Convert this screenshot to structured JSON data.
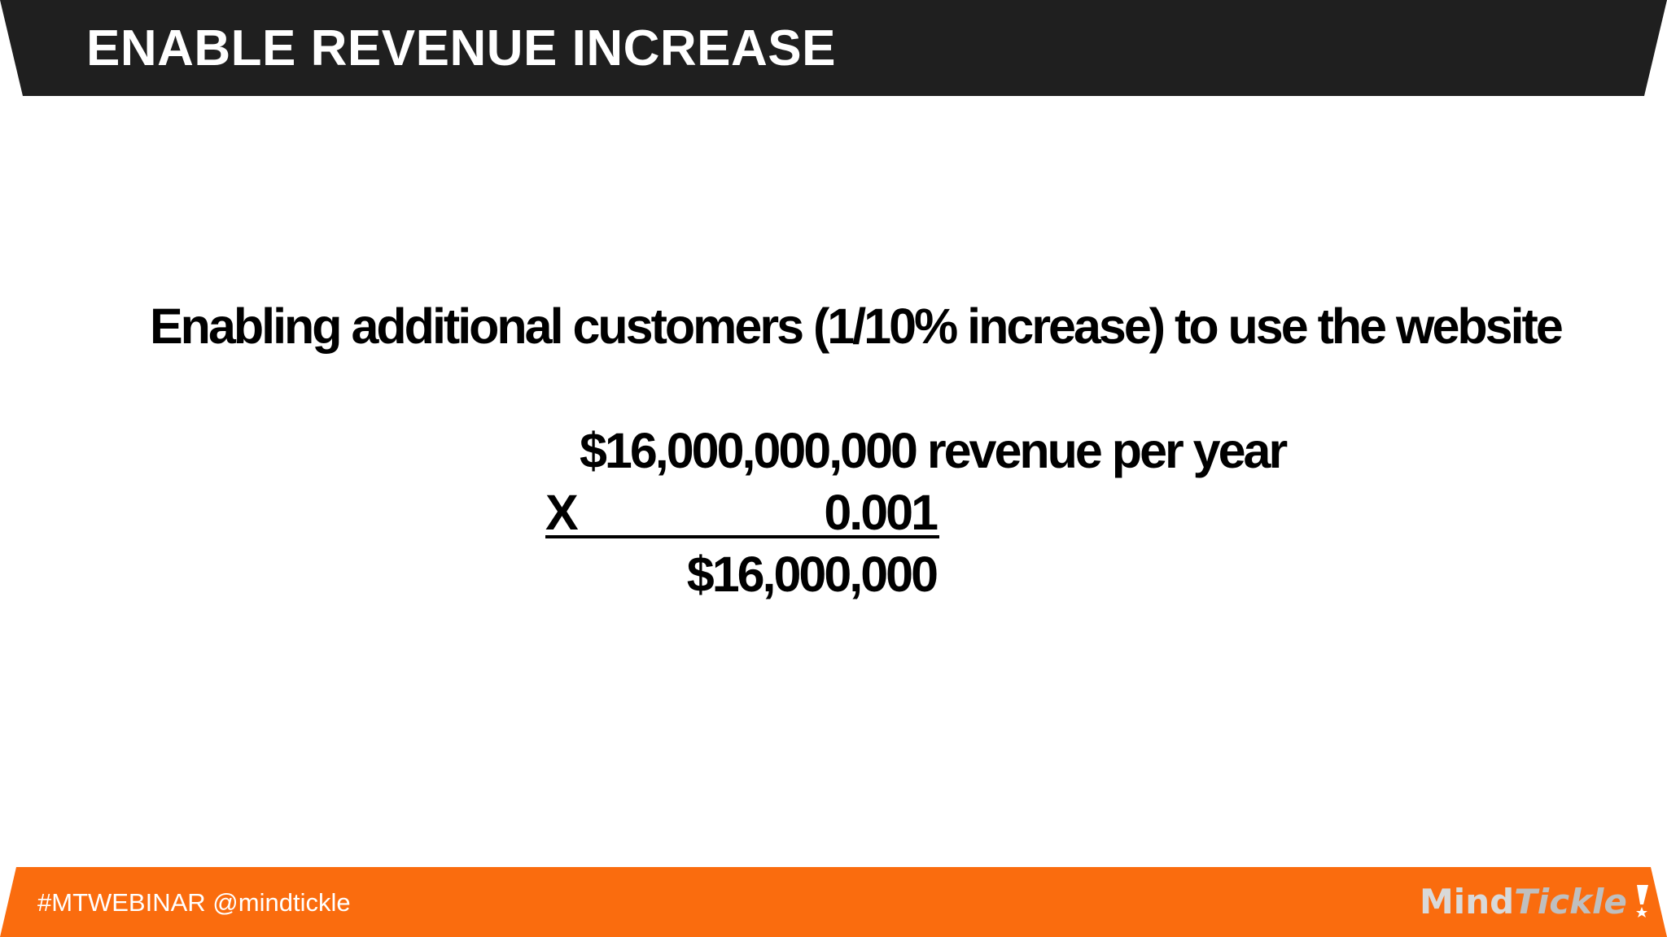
{
  "header": {
    "title": "ENABLE REVENUE INCREASE",
    "background_color": "#1f1f1f"
  },
  "main": {
    "headline": "Enabling additional customers (1/10% increase) to use the website",
    "calculation": {
      "revenue_line": "$16,000,000,000 revenue per year",
      "operator": "X",
      "multiplier": "0.001",
      "result": "$16,000,000"
    }
  },
  "footer": {
    "hashtag_text": "#MTWEBINAR @mindtickle",
    "background_color": "#fa6c0e",
    "logo": {
      "part1": "Mind",
      "part2": "Tickle"
    }
  }
}
